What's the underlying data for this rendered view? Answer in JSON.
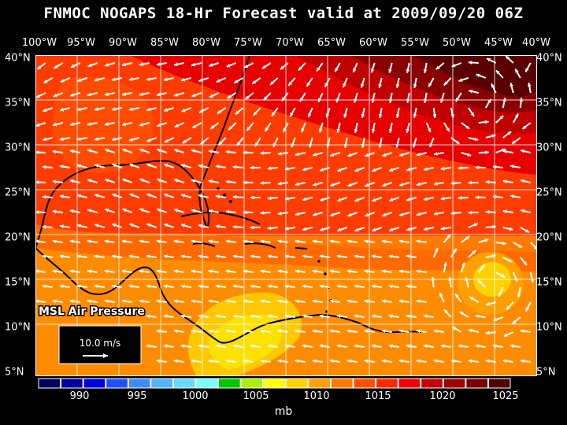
{
  "title": "FNMOC NOGAPS 18-Hr Forecast valid at 2009/09/20 06Z",
  "lon_labels": [
    "100°W",
    "95°W",
    "90°W",
    "85°W",
    "80°W",
    "75°W",
    "70°W",
    "65°W",
    "60°W",
    "55°W",
    "50°W",
    "45°W",
    "40°W"
  ],
  "lat_labels": [
    "40°N",
    "35°N",
    "30°N",
    "25°N",
    "20°N",
    "15°N",
    "10°N",
    "5°N"
  ],
  "legend": {
    "title": "MSL Air Pressure",
    "vector_scale": "10.0 m/s"
  },
  "colorbar": {
    "labels": [
      "990",
      "995",
      "1000",
      "1005",
      "1010",
      "1015",
      "1020",
      "1025"
    ],
    "unit": "mb",
    "colors": [
      "#000060",
      "#0000a0",
      "#0000dc",
      "#1e50ff",
      "#3c8cff",
      "#50b4ff",
      "#64dcff",
      "#78ffff",
      "#00c800",
      "#aaf000",
      "#ffff00",
      "#ffd200",
      "#ffa000",
      "#ff7800",
      "#ff5000",
      "#ff2800",
      "#f00000",
      "#c80000",
      "#a00000",
      "#780000",
      "#500000"
    ]
  }
}
